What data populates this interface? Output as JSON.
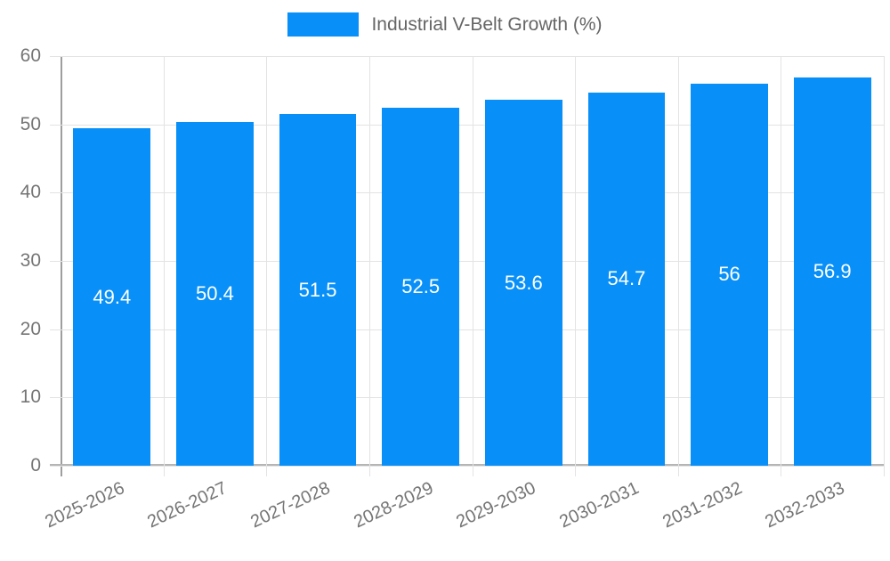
{
  "legend": {
    "label": "Industrial V-Belt Growth (%)",
    "swatch_color": "#0890f8"
  },
  "colors": {
    "bar": "#0890f8",
    "grid": "#e3e3e3",
    "axis_y": "#9e9e9e",
    "axis_x": "#b5b5b5",
    "tick_text": "#757575",
    "value_text": "#ffffff",
    "background": "#ffffff"
  },
  "chart_data": {
    "type": "bar",
    "title": "",
    "legend": "Industrial V-Belt Growth (%)",
    "categories": [
      "2025-2026",
      "2026-2027",
      "2027-2028",
      "2028-2029",
      "2029-2030",
      "2030-2031",
      "2031-2032",
      "2032-2033"
    ],
    "series": [
      {
        "name": "Industrial V-Belt Growth (%)",
        "values": [
          49.4,
          50.4,
          51.5,
          52.5,
          53.6,
          54.7,
          56,
          56.9
        ],
        "value_labels": [
          "49.4",
          "50.4",
          "51.5",
          "52.5",
          "53.6",
          "54.7",
          "56",
          "56.9"
        ]
      }
    ],
    "xlabel": "",
    "ylabel": "",
    "y_ticks": [
      0,
      10,
      20,
      30,
      40,
      50,
      60
    ],
    "ylim": [
      0,
      60
    ],
    "grid": true,
    "legend_position": "top-center",
    "bar_color": "#0890f8",
    "value_label_position": "inside-center"
  }
}
